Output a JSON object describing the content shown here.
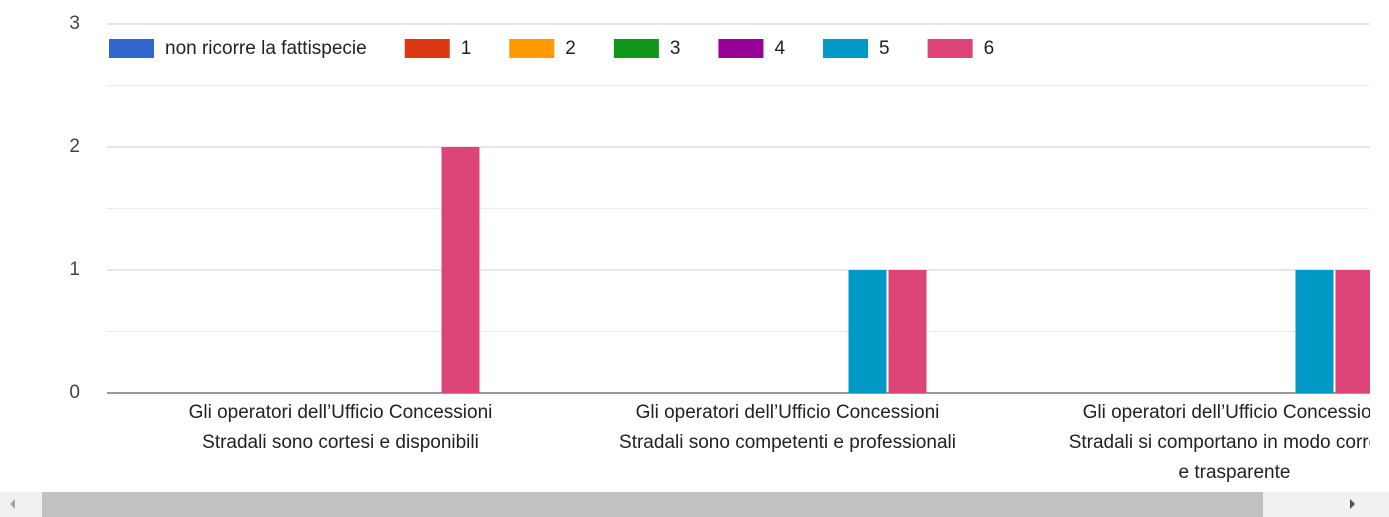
{
  "chart_data": {
    "type": "bar",
    "categories": [
      [
        "Gli operatori dell’Ufficio Concessioni",
        "Stradali sono cortesi e disponibili"
      ],
      [
        "Gli operatori dell’Ufficio Concessioni",
        "Stradali sono competenti e professionali"
      ],
      [
        "Gli operatori dell’Ufficio Concessioni",
        "Stradali si comportano in modo corretto",
        "e trasparente"
      ]
    ],
    "series": [
      {
        "name": "non ricorre la fattispecie",
        "color": "#3366cc",
        "values": [
          0,
          0,
          0
        ]
      },
      {
        "name": "1",
        "color": "#dc3912",
        "values": [
          0,
          0,
          0
        ]
      },
      {
        "name": "2",
        "color": "#ff9900",
        "values": [
          0,
          0,
          0
        ]
      },
      {
        "name": "3",
        "color": "#109618",
        "values": [
          0,
          0,
          0
        ]
      },
      {
        "name": "4",
        "color": "#990099",
        "values": [
          0,
          0,
          0
        ]
      },
      {
        "name": "5",
        "color": "#0099c6",
        "values": [
          0,
          1,
          1
        ]
      },
      {
        "name": "6",
        "color": "#dd4477",
        "values": [
          2,
          1,
          1
        ]
      }
    ],
    "ylim": [
      0,
      3
    ],
    "yticks": [
      0,
      1,
      2,
      3
    ],
    "grid": true,
    "legend": "top"
  }
}
